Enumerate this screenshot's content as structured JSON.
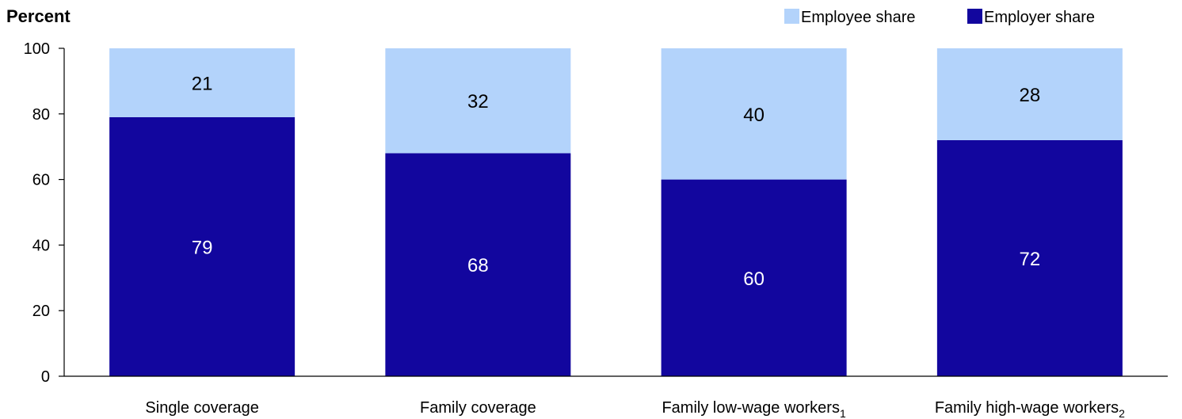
{
  "chart_data": {
    "type": "bar",
    "stacked": true,
    "ylabel": "Percent",
    "ylim": [
      0,
      100
    ],
    "yticks": [
      0,
      20,
      40,
      60,
      80,
      100
    ],
    "grid": false,
    "legend_position": "top-right",
    "categories": [
      {
        "label": "Single coverage",
        "sub": ""
      },
      {
        "label": "Family coverage",
        "sub": ""
      },
      {
        "label": "Family low-wage  workers",
        "sub": "1"
      },
      {
        "label": "Family high-wage workers",
        "sub": "2"
      }
    ],
    "series": [
      {
        "name": "Employer share",
        "color": "#12069e",
        "label_color": "#ffffff",
        "values": [
          79,
          68,
          60,
          72
        ]
      },
      {
        "name": "Employee share",
        "color": "#b3d3fb",
        "label_color": "#000000",
        "values": [
          21,
          32,
          40,
          28
        ]
      }
    ],
    "legend_order": [
      "Employee share",
      "Employer share"
    ]
  }
}
